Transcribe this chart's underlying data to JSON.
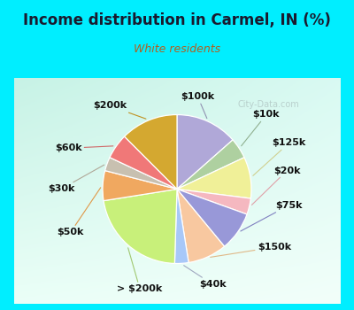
{
  "title": "Income distribution in Carmel, IN (%)",
  "subtitle": "White residents",
  "title_color": "#1a1a2e",
  "subtitle_color": "#b06020",
  "background_cyan": "#00eeff",
  "background_inner_tl": "#c8f0e8",
  "background_inner_br": "#f0fff8",
  "watermark": "City-Data.com",
  "labels": [
    "$100k",
    "$10k",
    "$125k",
    "$20k",
    "$75k",
    "$150k",
    "$40k",
    "> $200k",
    "$50k",
    "$30k",
    "$60k",
    "$200k"
  ],
  "values": [
    13.5,
    4.5,
    9.0,
    3.5,
    8.5,
    8.5,
    3.0,
    22.0,
    6.5,
    3.0,
    5.5,
    12.5
  ],
  "colors": [
    "#b0a8d8",
    "#aed0a0",
    "#f0f098",
    "#f5b8c0",
    "#9898d8",
    "#f8c8a0",
    "#a8c8f8",
    "#c8f07a",
    "#f0a860",
    "#c8c0b0",
    "#f07878",
    "#d4a830"
  ],
  "label_fontsize": 8,
  "startangle": 90,
  "title_fontsize": 12,
  "subtitle_fontsize": 9
}
